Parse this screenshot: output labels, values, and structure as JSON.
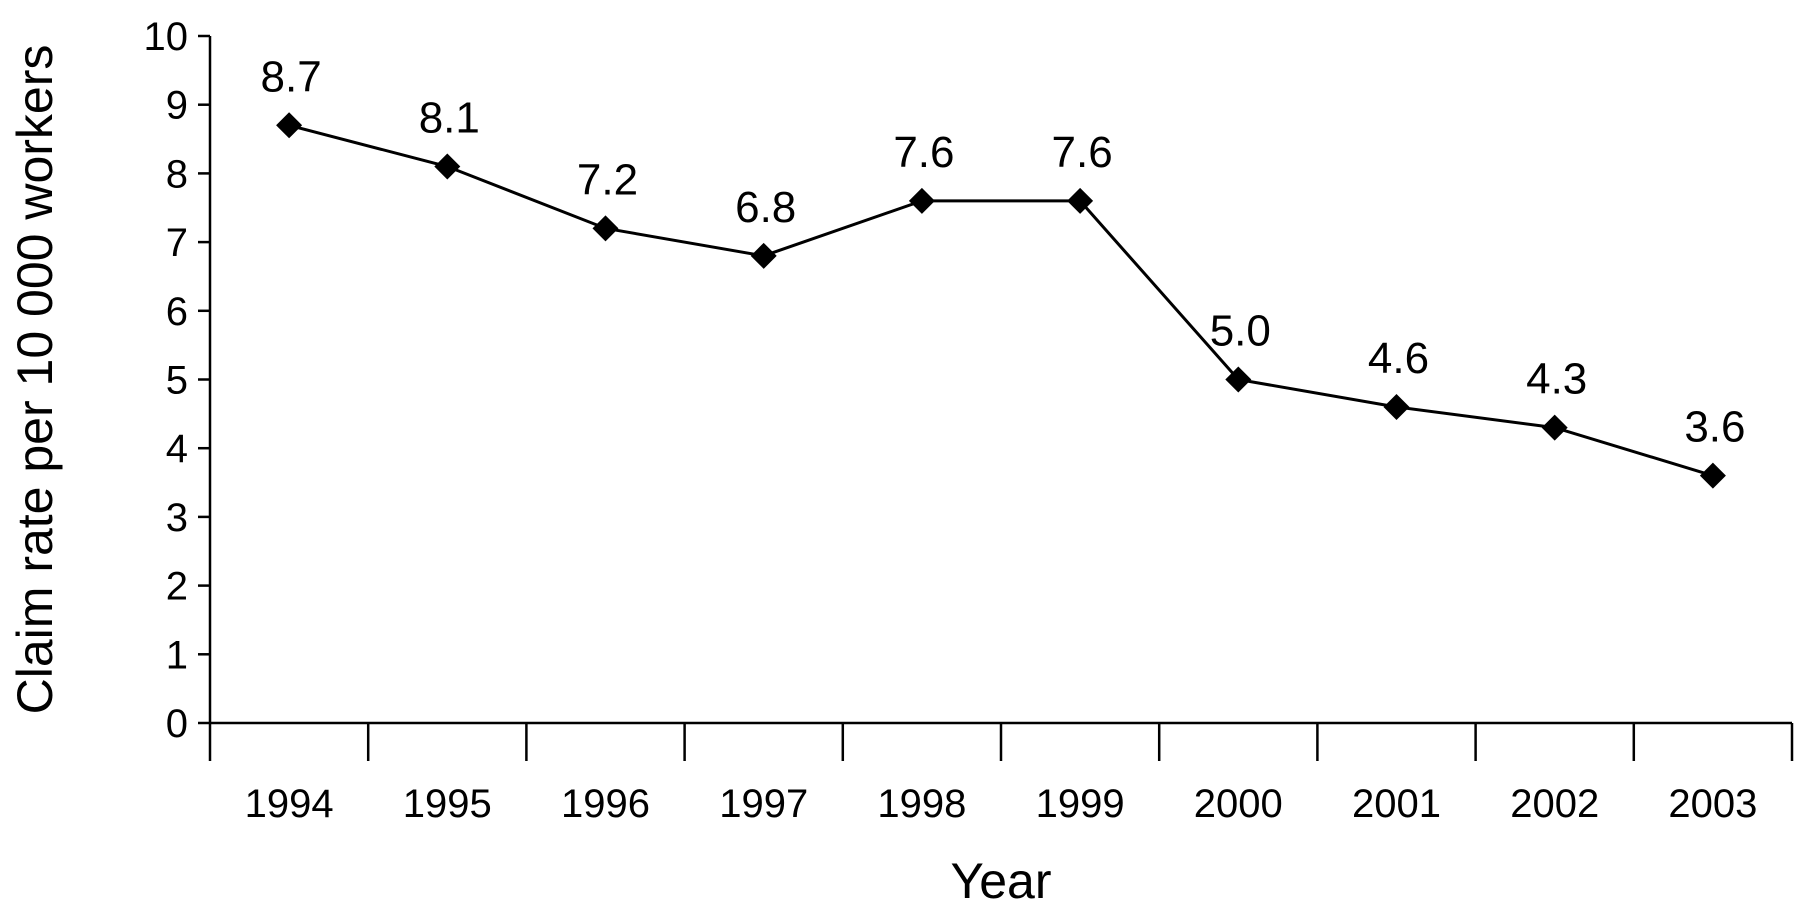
{
  "chart_data": {
    "type": "line",
    "title": "",
    "xlabel": "Year",
    "ylabel": "Claim rate per 10 000 workers",
    "categories": [
      "1994",
      "1995",
      "1996",
      "1997",
      "1998",
      "1999",
      "2000",
      "2001",
      "2002",
      "2003"
    ],
    "series": [
      {
        "values": [
          8.7,
          8.1,
          7.2,
          6.8,
          7.6,
          7.6,
          5.0,
          4.6,
          4.3,
          3.6
        ],
        "value_labels": [
          "8.7",
          "8.1",
          "7.2",
          "6.8",
          "7.6",
          "7.6",
          "5.0",
          "4.6",
          "4.3",
          "3.6"
        ],
        "marker": "diamond"
      }
    ],
    "ylim": [
      0,
      10
    ],
    "yticks": [
      "0",
      "1",
      "2",
      "3",
      "4",
      "5",
      "6",
      "7",
      "8",
      "9",
      "10"
    ],
    "grid": false,
    "legend": "none",
    "colors": {
      "line": "#000000",
      "marker": "#000000",
      "axis": "#000000"
    }
  }
}
